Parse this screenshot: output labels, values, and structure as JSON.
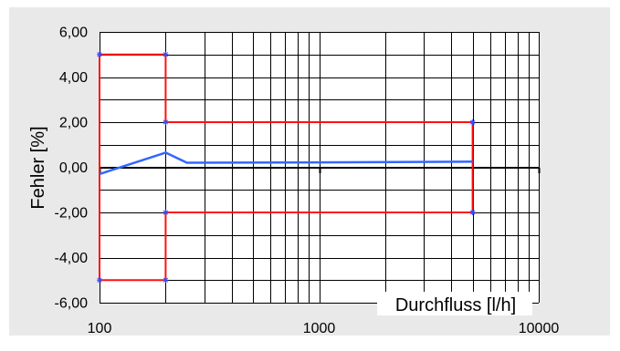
{
  "chart_data": {
    "type": "line",
    "title": "",
    "xlabel": "Durchfluss [l/h]",
    "ylabel": "Fehler [%]",
    "xscale": "log",
    "xlim": [
      100,
      10000
    ],
    "ylim": [
      -6,
      6
    ],
    "x_tick_labels": [
      "100",
      "1000",
      "10000"
    ],
    "y_tick_labels": [
      "6,00",
      "4,00",
      "2,00",
      "0,00",
      "-2,00",
      "-4,00",
      "-6,00"
    ],
    "grid": "major and minor vertical lines (log decades), horizontal every 1 unit",
    "series": [
      {
        "color": "#ff1010",
        "values": [
          {
            "x": 100,
            "y": 5
          },
          {
            "x": 200,
            "y": 5
          },
          {
            "x": 200,
            "y": 2
          },
          {
            "x": 5000,
            "y": 2
          },
          {
            "x": 5000,
            "y": -2
          },
          {
            "x": 200,
            "y": -2
          },
          {
            "x": 200,
            "y": -5
          },
          {
            "x": 100,
            "y": -5
          },
          {
            "x": 100,
            "y": 5
          }
        ]
      },
      {
        "color": "#3366ff",
        "values": [
          {
            "x": 100,
            "y": -0.3
          },
          {
            "x": 200,
            "y": 0.65
          },
          {
            "x": 250,
            "y": 0.2
          },
          {
            "x": 1000,
            "y": 0.22
          },
          {
            "x": 5000,
            "y": 0.25
          }
        ]
      }
    ],
    "markers": [
      {
        "x": 100,
        "y": 5
      },
      {
        "x": 200,
        "y": 5
      },
      {
        "x": 200,
        "y": 2
      },
      {
        "x": 5000,
        "y": 2
      },
      {
        "x": 5000,
        "y": -2
      },
      {
        "x": 200,
        "y": -2
      },
      {
        "x": 200,
        "y": -5
      },
      {
        "x": 100,
        "y": -5
      }
    ],
    "legend": "none"
  }
}
